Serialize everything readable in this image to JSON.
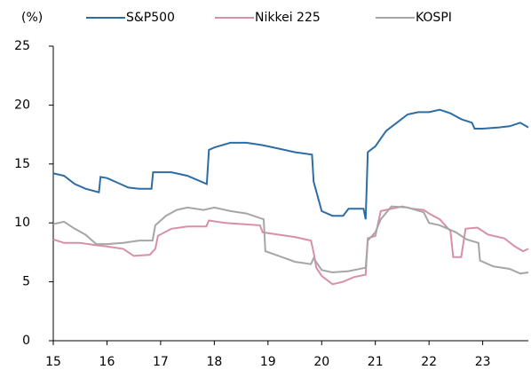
{
  "chart_data": {
    "type": "line",
    "y_label": "(%)",
    "legend": "top",
    "xlim": [
      15,
      23.85
    ],
    "xticks": [
      15,
      16,
      17,
      18,
      19,
      20,
      21,
      22,
      23
    ],
    "ylim": [
      0,
      25
    ],
    "yticks": [
      0,
      5,
      10,
      15,
      20,
      25
    ],
    "series": [
      {
        "name": "S&P500",
        "color": "#2e6da4",
        "x": [
          15.0,
          15.2,
          15.4,
          15.6,
          15.85,
          15.88,
          16.0,
          16.2,
          16.4,
          16.6,
          16.83,
          16.86,
          17.2,
          17.5,
          17.86,
          17.9,
          18.0,
          18.3,
          18.6,
          18.9,
          19.2,
          19.5,
          19.82,
          19.85,
          20.0,
          20.2,
          20.4,
          20.5,
          20.78,
          20.82,
          20.86,
          21.0,
          21.2,
          21.4,
          21.6,
          21.8,
          22.0,
          22.2,
          22.4,
          22.6,
          22.8,
          22.85,
          23.0,
          23.3,
          23.5,
          23.7,
          23.85
        ],
        "values": [
          14.2,
          14.0,
          13.3,
          12.9,
          12.6,
          13.9,
          13.8,
          13.4,
          13.0,
          12.9,
          12.9,
          14.3,
          14.3,
          14.0,
          13.3,
          16.2,
          16.4,
          16.8,
          16.8,
          16.6,
          16.3,
          16.0,
          15.8,
          13.5,
          11.0,
          10.6,
          10.6,
          11.2,
          11.2,
          10.3,
          16.0,
          16.5,
          17.8,
          18.5,
          19.2,
          19.4,
          19.4,
          19.6,
          19.3,
          18.8,
          18.5,
          18.0,
          18.0,
          18.1,
          18.2,
          18.5,
          18.1
        ]
      },
      {
        "name": "Nikkei 225",
        "color": "#d88fa9",
        "x": [
          15.0,
          15.2,
          15.5,
          15.8,
          16.0,
          16.3,
          16.5,
          16.8,
          16.9,
          16.95,
          17.2,
          17.5,
          17.85,
          17.9,
          18.2,
          18.5,
          18.85,
          18.9,
          19.2,
          19.5,
          19.8,
          19.85,
          19.9,
          20.0,
          20.2,
          20.4,
          20.6,
          20.82,
          20.86,
          21.0,
          21.1,
          21.3,
          21.5,
          21.7,
          21.9,
          22.0,
          22.2,
          22.4,
          22.45,
          22.6,
          22.68,
          22.9,
          23.1,
          23.4,
          23.6,
          23.75,
          23.85
        ],
        "values": [
          8.6,
          8.3,
          8.3,
          8.1,
          8.0,
          7.8,
          7.2,
          7.3,
          7.8,
          8.9,
          9.5,
          9.7,
          9.7,
          10.2,
          10.0,
          9.9,
          9.8,
          9.2,
          9.0,
          8.8,
          8.5,
          7.5,
          6.2,
          5.5,
          4.8,
          5.0,
          5.4,
          5.6,
          8.7,
          8.9,
          11.0,
          11.2,
          11.4,
          11.2,
          11.1,
          10.8,
          10.3,
          9.3,
          7.1,
          7.1,
          9.5,
          9.6,
          9.0,
          8.7,
          8.0,
          7.6,
          7.8
        ]
      },
      {
        "name": "KOSPI",
        "color": "#a6a6a6",
        "x": [
          15.0,
          15.2,
          15.4,
          15.6,
          15.8,
          16.0,
          16.3,
          16.6,
          16.85,
          16.9,
          17.1,
          17.3,
          17.5,
          17.8,
          18.0,
          18.3,
          18.6,
          18.92,
          18.95,
          19.2,
          19.5,
          19.8,
          19.85,
          20.0,
          20.2,
          20.5,
          20.82,
          20.86,
          21.0,
          21.1,
          21.3,
          21.6,
          21.9,
          22.0,
          22.2,
          22.5,
          22.7,
          22.92,
          22.95,
          23.2,
          23.5,
          23.7,
          23.85
        ],
        "values": [
          9.9,
          10.1,
          9.5,
          9.0,
          8.2,
          8.2,
          8.3,
          8.5,
          8.5,
          9.8,
          10.6,
          11.1,
          11.3,
          11.1,
          11.3,
          11.0,
          10.8,
          10.3,
          7.6,
          7.2,
          6.7,
          6.5,
          7.0,
          6.0,
          5.8,
          5.9,
          6.2,
          8.5,
          9.2,
          10.3,
          11.4,
          11.3,
          10.9,
          10.0,
          9.8,
          9.2,
          8.6,
          8.3,
          6.8,
          6.3,
          6.1,
          5.7,
          5.8
        ]
      }
    ]
  }
}
